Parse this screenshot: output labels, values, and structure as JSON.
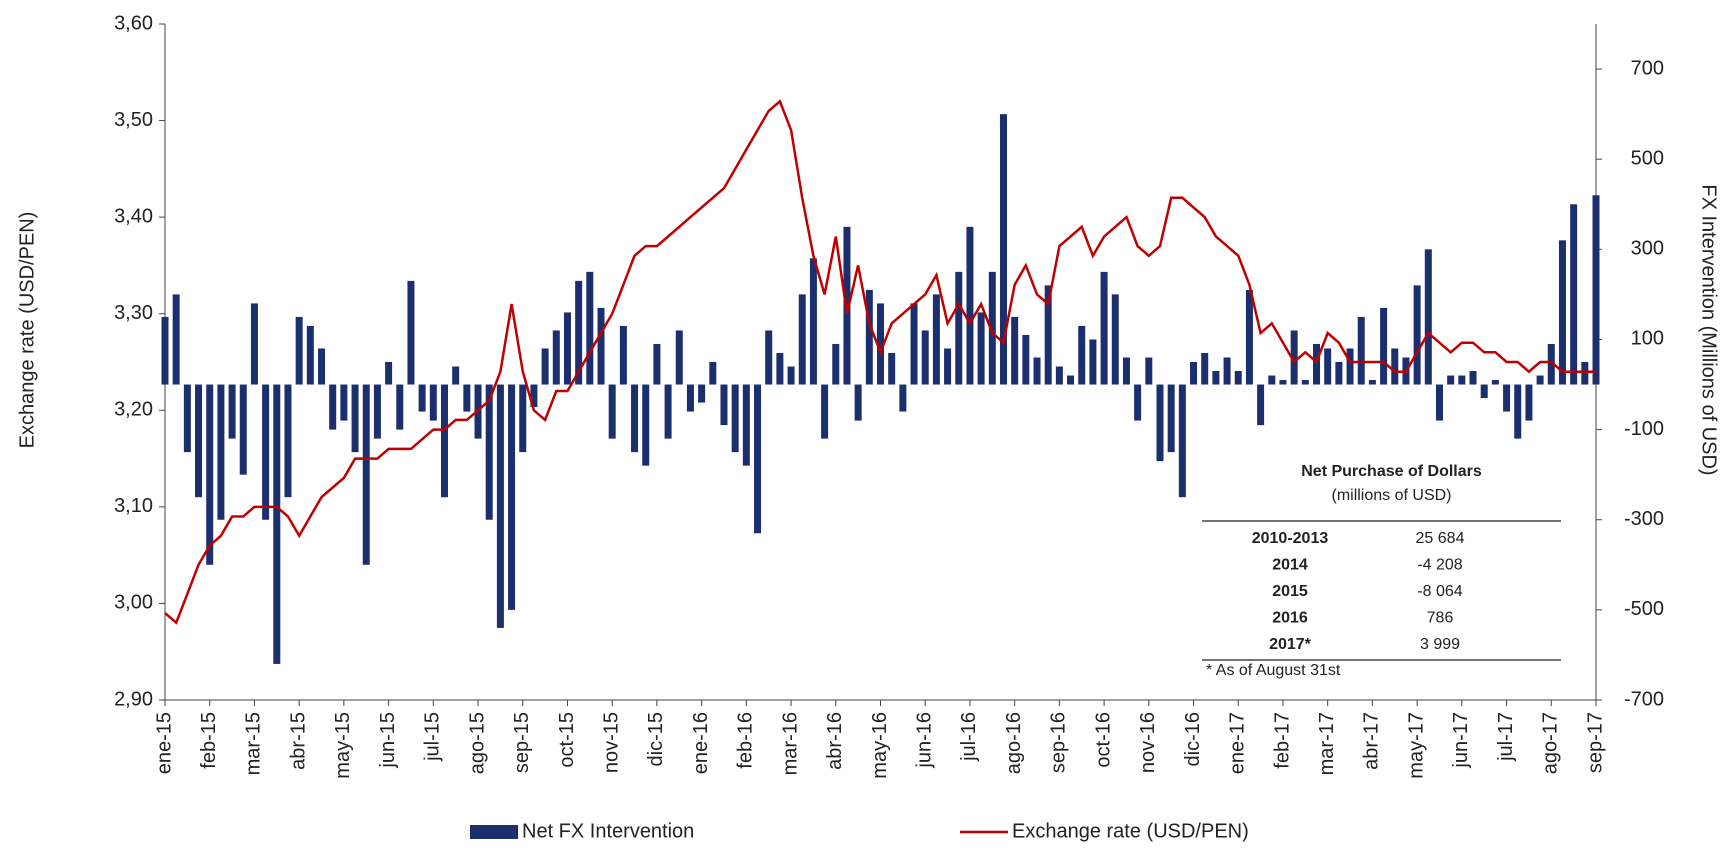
{
  "chart_data": {
    "type": "bar-line",
    "y_label": "Exchange rate (USD/PEN)",
    "y2_label": "FX Intervention  (Millions of USD)",
    "categories": [
      "ene-15",
      null,
      null,
      null,
      "feb-15",
      null,
      null,
      null,
      "mar-15",
      null,
      null,
      null,
      "abr-15",
      null,
      null,
      null,
      "may-15",
      null,
      null,
      null,
      "jun-15",
      null,
      null,
      null,
      "jul-15",
      null,
      null,
      null,
      "ago-15",
      null,
      null,
      null,
      "sep-15",
      null,
      null,
      null,
      "oct-15",
      null,
      null,
      null,
      "nov-15",
      null,
      null,
      null,
      "dic-15",
      null,
      null,
      null,
      "ene-16",
      null,
      null,
      null,
      "feb-16",
      null,
      null,
      null,
      "mar-16",
      null,
      null,
      null,
      "abr-16",
      null,
      null,
      null,
      "may-16",
      null,
      null,
      null,
      "jun-16",
      null,
      null,
      null,
      "jul-16",
      null,
      null,
      null,
      "ago-16",
      null,
      null,
      null,
      "sep-16",
      null,
      null,
      null,
      "oct-16",
      null,
      null,
      null,
      "nov-16",
      null,
      null,
      null,
      "dic-16",
      null,
      null,
      null,
      "ene-17",
      null,
      null,
      null,
      "feb-17",
      null,
      null,
      null,
      "mar-17",
      null,
      null,
      null,
      "abr-17",
      null,
      null,
      null,
      "may-17",
      null,
      null,
      null,
      "jun-17",
      null,
      null,
      null,
      "jul-17",
      null,
      null,
      null,
      "ago-17",
      null,
      null,
      null,
      "sep-17"
    ],
    "series": [
      {
        "name": "Net FX Intervention",
        "type": "bar",
        "axis": "y2",
        "color": "#1b2f6e",
        "values": [
          150,
          200,
          -150,
          -250,
          -400,
          -300,
          -120,
          -200,
          180,
          -300,
          -620,
          -250,
          150,
          130,
          80,
          -100,
          -80,
          -150,
          -400,
          -120,
          50,
          -100,
          230,
          -60,
          -80,
          -250,
          40,
          -60,
          -120,
          -300,
          -540,
          -500,
          -150,
          -50,
          80,
          120,
          160,
          230,
          250,
          170,
          -120,
          130,
          -150,
          -180,
          90,
          -120,
          120,
          -60,
          -40,
          50,
          -90,
          -150,
          -180,
          -330,
          120,
          70,
          40,
          200,
          280,
          -120,
          90,
          350,
          -80,
          210,
          180,
          70,
          -60,
          180,
          120,
          200,
          80,
          250,
          350,
          160,
          250,
          600,
          150,
          110,
          60,
          220,
          40,
          20,
          130,
          100,
          250,
          200,
          60,
          -80,
          60,
          -170,
          -150,
          -250,
          50,
          70,
          30,
          60,
          30,
          210,
          -90,
          20,
          10,
          120,
          10,
          90,
          80,
          50,
          80,
          150,
          10,
          170,
          80,
          60,
          220,
          300,
          -80,
          20,
          20,
          30,
          -30,
          10,
          -60,
          -120,
          -80,
          20,
          90,
          320,
          400,
          50,
          420
        ]
      },
      {
        "name": "Exchange rate (USD/PEN)",
        "type": "line",
        "axis": "y",
        "color": "#c00000",
        "values": [
          2.99,
          2.98,
          3.01,
          3.04,
          3.06,
          3.07,
          3.09,
          3.09,
          3.1,
          3.1,
          3.1,
          3.09,
          3.07,
          3.09,
          3.11,
          3.12,
          3.13,
          3.15,
          3.15,
          3.15,
          3.16,
          3.16,
          3.16,
          3.17,
          3.18,
          3.18,
          3.19,
          3.19,
          3.2,
          3.21,
          3.24,
          3.31,
          3.24,
          3.2,
          3.19,
          3.22,
          3.22,
          3.24,
          3.26,
          3.28,
          3.3,
          3.33,
          3.36,
          3.37,
          3.37,
          3.38,
          3.39,
          3.4,
          3.41,
          3.42,
          3.43,
          3.45,
          3.47,
          3.49,
          3.51,
          3.52,
          3.49,
          3.42,
          3.36,
          3.32,
          3.38,
          3.3,
          3.35,
          3.29,
          3.26,
          3.29,
          3.3,
          3.31,
          3.32,
          3.34,
          3.29,
          3.31,
          3.29,
          3.31,
          3.28,
          3.27,
          3.33,
          3.35,
          3.32,
          3.31,
          3.37,
          3.38,
          3.39,
          3.36,
          3.38,
          3.39,
          3.4,
          3.37,
          3.36,
          3.37,
          3.42,
          3.42,
          3.41,
          3.4,
          3.38,
          3.37,
          3.36,
          3.33,
          3.28,
          3.29,
          3.27,
          3.25,
          3.26,
          3.25,
          3.28,
          3.27,
          3.25,
          3.25,
          3.25,
          3.25,
          3.24,
          3.24,
          3.26,
          3.28,
          3.27,
          3.26,
          3.27,
          3.27,
          3.26,
          3.26,
          3.25,
          3.25,
          3.24,
          3.25,
          3.25,
          3.24,
          3.24,
          3.24,
          3.24
        ]
      }
    ],
    "ylim": [
      2.9,
      3.6
    ],
    "yticks": [
      {
        "value": 2.9,
        "label": "2,90"
      },
      {
        "value": 3.0,
        "label": "3,00"
      },
      {
        "value": 3.1,
        "label": "3,10"
      },
      {
        "value": 3.2,
        "label": "3,20"
      },
      {
        "value": 3.3,
        "label": "3,30"
      },
      {
        "value": 3.4,
        "label": "3,40"
      },
      {
        "value": 3.5,
        "label": "3,50"
      },
      {
        "value": 3.6,
        "label": "3,60"
      }
    ],
    "y2lim": [
      -700,
      800
    ],
    "y2ticks": [
      -700,
      -500,
      -300,
      -100,
      100,
      300,
      500,
      700
    ],
    "legend": "bottom",
    "table": {
      "title": "Net Purchase of Dollars",
      "subtitle": "(millions of USD)",
      "rows": [
        [
          "2010-2013",
          "25 684"
        ],
        [
          "2014",
          "-4 208"
        ],
        [
          "2015",
          "-8 064"
        ],
        [
          "2016",
          "786"
        ],
        [
          "2017*",
          "3 999"
        ]
      ],
      "note": "* As of August 31st"
    }
  }
}
